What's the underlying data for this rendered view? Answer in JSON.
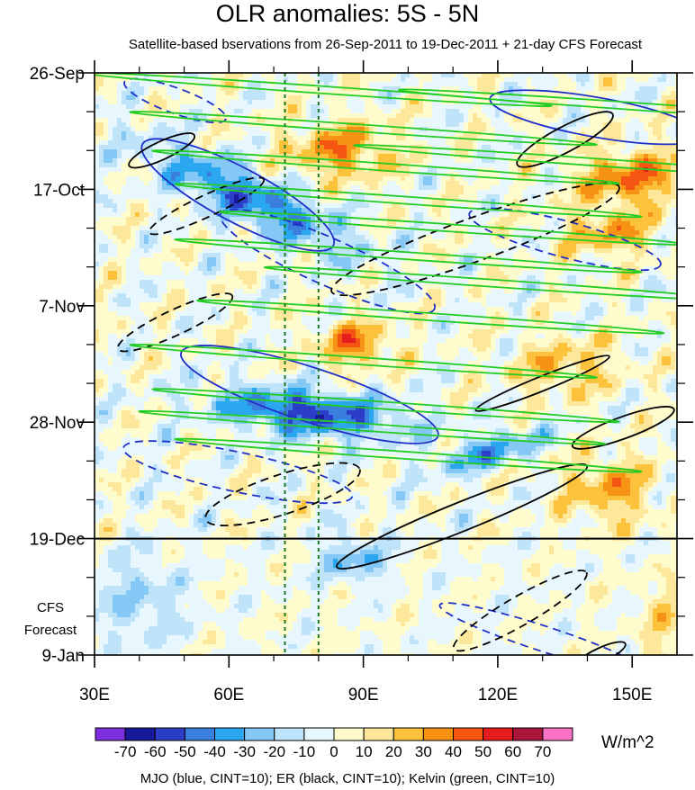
{
  "chart_data": {
    "type": "heatmap",
    "title": "OLR anomalies: 5S - 5N",
    "subtitle": "Satellite-based bservations from 26-Sep-2011 to 19-Dec-2011 + 21-day CFS Forecast",
    "x_axis": {
      "range": [
        30,
        160
      ],
      "ticks": [
        30,
        60,
        90,
        120,
        150
      ],
      "tick_labels": [
        "30E",
        "60E",
        "90E",
        "120E",
        "150E"
      ]
    },
    "y_axis": {
      "range_days_from_start": [
        0,
        105
      ],
      "ticks": [
        0,
        21,
        42,
        63,
        84,
        105
      ],
      "tick_labels": [
        "26-Sep",
        "17-Oct",
        "7-Nov",
        "28-Nov",
        "19-Dec",
        "9-Jan"
      ]
    },
    "forecast_start_day": 84,
    "forecast_label_1": "CFS",
    "forecast_label_2": "Forecast",
    "reference_lines_lon": [
      72.5,
      80
    ],
    "colorbar": {
      "levels": [
        "-70",
        "-60",
        "-50",
        "-40",
        "-30",
        "-20",
        "-10",
        "0",
        "10",
        "20",
        "30",
        "40",
        "50",
        "60",
        "70"
      ],
      "colors": [
        "#7d2fe0",
        "#19199e",
        "#2c3dc8",
        "#3a7fdd",
        "#2aa7ee",
        "#86c8f5",
        "#bfe3f8",
        "#e8f7fd",
        "#fefbcc",
        "#fde79a",
        "#fcc23c",
        "#f79314",
        "#f45512",
        "#e51d1f",
        "#a8163a",
        "#f873c4"
      ],
      "units": "W/m^2"
    },
    "contours": {
      "mjo": "blue",
      "er": "black",
      "kelvin": "green",
      "cint": 10
    },
    "caption": "MJO (blue, CINT=10); ER (black, CINT=10); Kelvin (green, CINT=10)"
  }
}
